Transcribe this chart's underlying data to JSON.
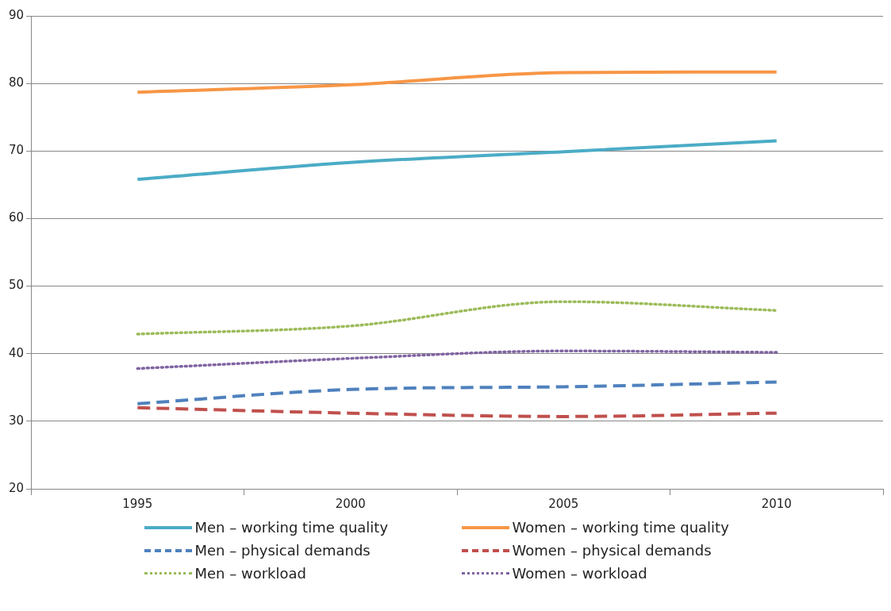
{
  "chart_data": {
    "type": "line",
    "categories": [
      "1995",
      "2000",
      "2005",
      "2010"
    ],
    "series": [
      {
        "name": "Men – working time quality",
        "color": "#4bacc6",
        "line_style": "solid",
        "values": [
          65.8,
          68.3,
          69.9,
          71.5
        ]
      },
      {
        "name": "Women – working time quality",
        "color": "#f79646",
        "line_style": "solid",
        "values": [
          78.7,
          79.8,
          81.6,
          81.7
        ]
      },
      {
        "name": "Men – physical demands",
        "color": "#4f81bd",
        "line_style": "dashed",
        "values": [
          32.6,
          34.7,
          35.1,
          35.8
        ]
      },
      {
        "name": "Women – physical demands",
        "color": "#c0504d",
        "line_style": "dashed",
        "values": [
          32.0,
          31.2,
          30.7,
          31.2
        ]
      },
      {
        "name": "Men – workload",
        "color": "#9bbb59",
        "line_style": "dotted",
        "values": [
          42.9,
          44.1,
          47.7,
          46.4
        ]
      },
      {
        "name": "Women – workload",
        "color": "#8064a2",
        "line_style": "dotted",
        "values": [
          37.8,
          39.3,
          40.4,
          40.2
        ]
      }
    ],
    "ylim": [
      20,
      90
    ],
    "yticks": [
      20,
      30,
      40,
      50,
      60,
      70,
      80,
      90
    ],
    "grid": "y",
    "legend": "bottom",
    "marker": "none"
  }
}
